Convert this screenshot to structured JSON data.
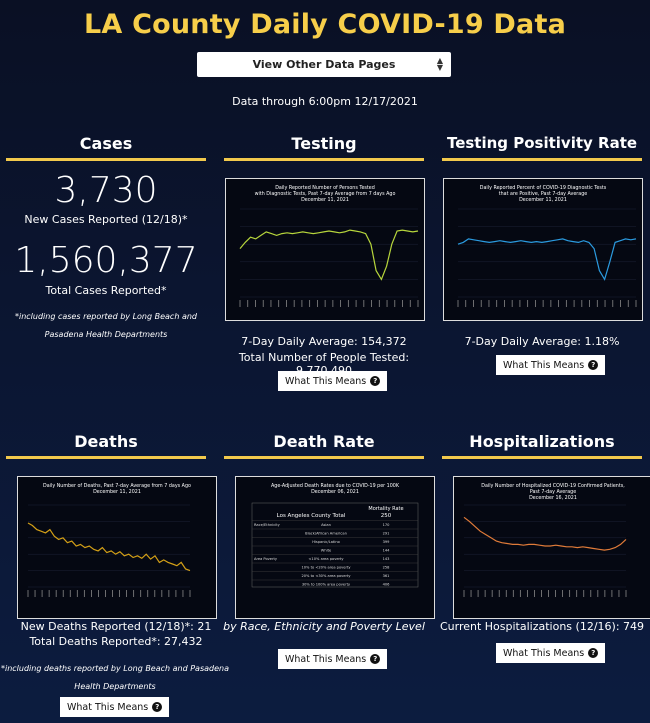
{
  "title": "LA County Daily COVID-19 Data",
  "selector": {
    "label": "View Other Data Pages"
  },
  "data_through": "Data through 6:00pm 12/17/2021",
  "cases": {
    "heading": "Cases",
    "new_value": "3,730",
    "new_label": "New Cases Reported (12/18)*",
    "total_value": "1,560,377",
    "total_label": "Total Cases Reported*",
    "note": "*including cases reported by Long Beach and Pasadena Health Departments"
  },
  "testing": {
    "heading": "Testing",
    "chart_title_1": "Daily Reported Number of Persons Tested",
    "chart_title_2": "with Diagnostic Tests, Past 7-day Average from 7 days Ago",
    "chart_title_3": "December 11, 2021",
    "avg": "7-Day Daily Average: 154,372",
    "total": "Total Number of People Tested: 9,770,490",
    "button": "What This Means"
  },
  "positivity": {
    "heading": "Testing Positivity Rate",
    "chart_title_1": "Daily Reported Percent of COVID-19 Diagnostic Tests",
    "chart_title_2": "that are Positive, Past 7-day Average",
    "chart_title_3": "December 11, 2021",
    "avg": "7-Day Daily Average: 1.18%",
    "button": "What This Means"
  },
  "deaths": {
    "heading": "Deaths",
    "chart_title_1": "Daily Number of Deaths, Past 7-day Average from 7 days Ago",
    "chart_title_2": "December 11, 2021",
    "new": "New Deaths Reported (12/18)*: 21",
    "total": "Total Deaths Reported*: 27,432",
    "note": "*including deaths reported by Long Beach and Pasadena Health Departments",
    "button": "What This Means"
  },
  "death_rate": {
    "heading": "Death Rate",
    "chart_title_1": "Age-Adjusted Death Rates due to COVID-19 per 100K",
    "chart_title_2": "December 06, 2021",
    "col_header": "Mortality Rate",
    "total_label": "Los Angeles County Total",
    "total_value": "250",
    "rows": [
      {
        "group": "Race/Ethnicity",
        "label": "Asian",
        "value": "170"
      },
      {
        "group": "",
        "label": "Black/African American",
        "value": "291"
      },
      {
        "group": "",
        "label": "Hispanic/Latino",
        "value": "399"
      },
      {
        "group": "",
        "label": "White",
        "value": "144"
      },
      {
        "group": "Area Poverty",
        "label": "<10% area poverty",
        "value": "143"
      },
      {
        "group": "",
        "label": "10% to <20% area poverty",
        "value": "258"
      },
      {
        "group": "",
        "label": "20% to <30% area poverty",
        "value": "361"
      },
      {
        "group": "",
        "label": "30% to 100% area poverty",
        "value": "406"
      }
    ],
    "caption": "by Race, Ethnicity and Poverty Level",
    "button": "What This Means"
  },
  "hospitalizations": {
    "heading": "Hospitalizations",
    "chart_title_1": "Daily Number of Hospitalized COVID-19 Confirmed Patients,",
    "chart_title_2": "Past 7-day Average",
    "chart_title_3": "December 16, 2021",
    "current": "Current Hospitalizations (12/16): 749",
    "button": "What This Means"
  },
  "colors": {
    "accent": "#f7ce4a",
    "testing_line": "#b7d63c",
    "positivity_line": "#2b9be0",
    "deaths_line": "#d4a017",
    "hosp_line": "#e07b39"
  },
  "chart_data": [
    {
      "type": "line",
      "name": "testing",
      "values": [
        0.55,
        0.62,
        0.68,
        0.66,
        0.7,
        0.74,
        0.72,
        0.7,
        0.72,
        0.73,
        0.72,
        0.73,
        0.74,
        0.73,
        0.72,
        0.73,
        0.74,
        0.75,
        0.74,
        0.73,
        0.74,
        0.76,
        0.75,
        0.74,
        0.72,
        0.6,
        0.3,
        0.2,
        0.35,
        0.6,
        0.75,
        0.76,
        0.75,
        0.74,
        0.75
      ]
    },
    {
      "type": "line",
      "name": "positivity",
      "values": [
        0.6,
        0.62,
        0.66,
        0.65,
        0.64,
        0.63,
        0.62,
        0.63,
        0.64,
        0.63,
        0.62,
        0.63,
        0.64,
        0.63,
        0.62,
        0.63,
        0.62,
        0.63,
        0.64,
        0.65,
        0.66,
        0.64,
        0.63,
        0.62,
        0.64,
        0.62,
        0.55,
        0.3,
        0.2,
        0.4,
        0.62,
        0.64,
        0.66,
        0.65,
        0.66
      ]
    },
    {
      "type": "line",
      "name": "deaths",
      "values": [
        0.78,
        0.75,
        0.7,
        0.68,
        0.66,
        0.7,
        0.62,
        0.58,
        0.6,
        0.54,
        0.56,
        0.5,
        0.52,
        0.48,
        0.5,
        0.46,
        0.44,
        0.48,
        0.42,
        0.44,
        0.4,
        0.43,
        0.38,
        0.4,
        0.36,
        0.38,
        0.35,
        0.4,
        0.34,
        0.38,
        0.3,
        0.33,
        0.3,
        0.28,
        0.26,
        0.3,
        0.22,
        0.2
      ]
    },
    {
      "type": "line",
      "name": "hospitalizations",
      "values": [
        0.85,
        0.8,
        0.74,
        0.68,
        0.64,
        0.6,
        0.56,
        0.54,
        0.53,
        0.52,
        0.52,
        0.51,
        0.52,
        0.52,
        0.51,
        0.5,
        0.5,
        0.51,
        0.5,
        0.49,
        0.49,
        0.48,
        0.49,
        0.48,
        0.47,
        0.46,
        0.45,
        0.46,
        0.48,
        0.52,
        0.58
      ]
    }
  ]
}
